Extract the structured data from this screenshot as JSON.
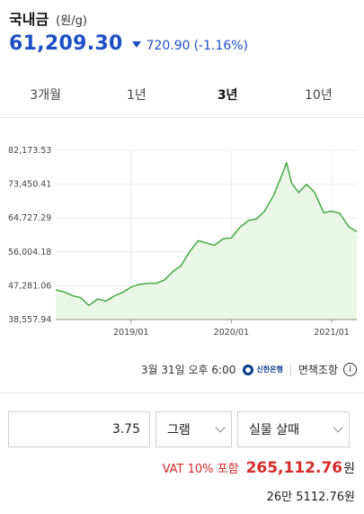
{
  "header": {
    "title": "국내금",
    "unit": "(원/g)",
    "price": "61,209.30",
    "change_amount": "720.90",
    "change_percent": "(-1.16%)"
  },
  "tabs": [
    {
      "label": "3개월",
      "active": false
    },
    {
      "label": "1년",
      "active": false
    },
    {
      "label": "3년",
      "active": true
    },
    {
      "label": "10년",
      "active": false
    }
  ],
  "chart_data": {
    "type": "area",
    "y_ticks": [
      "82,173.53",
      "73,450.41",
      "64,727.29",
      "56,004.18",
      "47,281.06",
      "38,557.94"
    ],
    "ylim": [
      38557.94,
      82173.53
    ],
    "x_ticks": [
      {
        "label": "2019/01",
        "x": 2019.0
      },
      {
        "label": "2020/01",
        "x": 2020.0
      },
      {
        "label": "2021/01",
        "x": 2021.0
      }
    ],
    "xlim": [
      2018.25,
      2021.25
    ],
    "series_color": "#3aa53a",
    "fill_color": "#eaf7e6",
    "x": [
      2018.25,
      2018.33,
      2018.42,
      2018.5,
      2018.58,
      2018.67,
      2018.75,
      2018.83,
      2018.92,
      2019.0,
      2019.08,
      2019.17,
      2019.25,
      2019.33,
      2019.42,
      2019.5,
      2019.58,
      2019.67,
      2019.75,
      2019.83,
      2019.92,
      2020.0,
      2020.08,
      2020.17,
      2020.25,
      2020.33,
      2020.42,
      2020.5,
      2020.55,
      2020.6,
      2020.67,
      2020.75,
      2020.83,
      2020.92,
      2021.0,
      2021.08,
      2021.17,
      2021.25
    ],
    "y": [
      46200,
      45700,
      44700,
      44200,
      42200,
      43900,
      43300,
      44600,
      45600,
      46900,
      47600,
      47900,
      47900,
      48700,
      51000,
      52500,
      55900,
      58900,
      58300,
      57700,
      59400,
      59600,
      62200,
      64100,
      64500,
      66500,
      70500,
      75600,
      79000,
      73800,
      71300,
      73400,
      71300,
      66100,
      66500,
      65900,
      62500,
      61200
    ]
  },
  "source": {
    "datetime": "3월 31일 오후 6:00",
    "bank_logo_text": "신한은행",
    "disclaimer": "면책조항"
  },
  "calculator": {
    "quantity": "3.75",
    "unit_option": "그램",
    "type_option": "실물 살때",
    "vat_label": "VAT 10% 포함",
    "total": "265,112.76",
    "won": "원",
    "korean_amount": "26만 5112.76원"
  }
}
